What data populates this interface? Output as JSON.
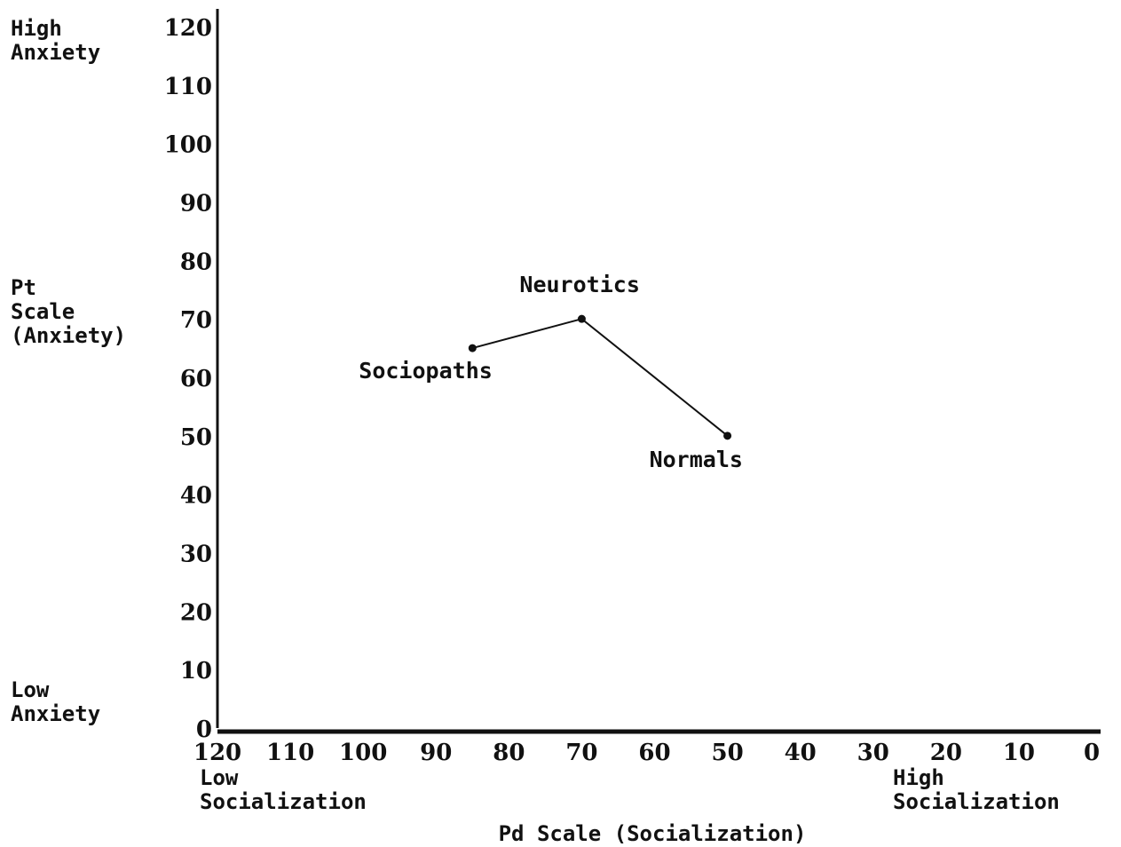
{
  "chart_data": {
    "type": "line",
    "title": "",
    "xlabel": "Pd Scale (Socialization)",
    "ylabel_lines": [
      "Pt",
      "Scale",
      "(Anxiety)"
    ],
    "x_axis": {
      "min": 0,
      "max": 120,
      "reversed": true,
      "ticks": [
        120,
        110,
        100,
        90,
        80,
        70,
        60,
        50,
        40,
        30,
        20,
        10,
        0
      ],
      "low_end_label": [
        "Low",
        "Socialization"
      ],
      "high_end_label": [
        "High",
        "Socialization"
      ]
    },
    "y_axis": {
      "min": 0,
      "max": 120,
      "ticks": [
        120,
        110,
        100,
        90,
        80,
        70,
        60,
        50,
        40,
        30,
        20,
        10,
        0
      ],
      "high_end_label": [
        "High",
        "Anxiety"
      ],
      "low_end_label": [
        "Low",
        "Anxiety"
      ]
    },
    "grid": false,
    "points": [
      {
        "label": "Sociopaths",
        "x": 85,
        "y": 65
      },
      {
        "label": "Neurotics",
        "x": 70,
        "y": 70
      },
      {
        "label": "Normals",
        "x": 50,
        "y": 50
      }
    ],
    "colors": {
      "ink": "#111111",
      "background": "#ffffff"
    }
  }
}
